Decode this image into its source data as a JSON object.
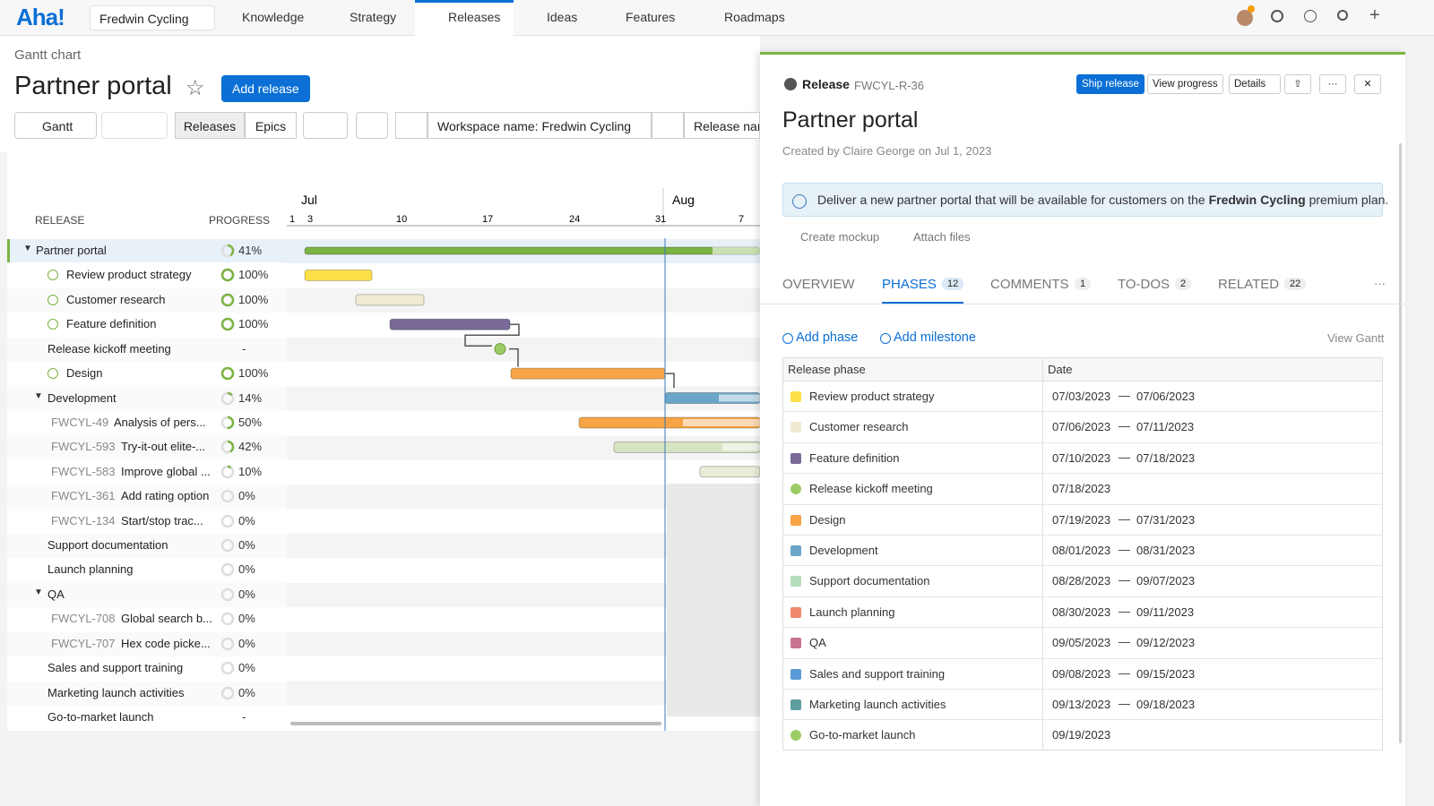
{
  "nav": {
    "logo": "Aha!",
    "workspace": "Fredwin Cycling",
    "items": [
      "Knowledge",
      "Strategy",
      "Releases",
      "Ideas",
      "Features",
      "Roadmaps"
    ],
    "active": 2
  },
  "page": {
    "breadcrumb": "Gantt chart",
    "title": "Partner portal",
    "add_button": "Add release"
  },
  "toolbar": {
    "view": "Gantt",
    "tabs": [
      "Releases",
      "Epics"
    ],
    "filter": "Workspace name: Fredwin Cycling",
    "filter2": "Release nam"
  },
  "gantt": {
    "release_header": "RELEASE",
    "progress_header": "PROGRESS",
    "months": [
      "Jul",
      "Aug"
    ],
    "days": [
      "1",
      "3",
      "10",
      "17",
      "24",
      "31",
      "7"
    ],
    "rows": [
      {
        "name": "Partner portal",
        "progress": 41,
        "progress_label": "41%"
      },
      {
        "name": "Review product strategy",
        "progress": 100,
        "progress_label": "100%"
      },
      {
        "name": "Customer research",
        "progress": 100,
        "progress_label": "100%"
      },
      {
        "name": "Feature definition",
        "progress": 100,
        "progress_label": "100%"
      },
      {
        "name": "Release kickoff meeting",
        "progress": null,
        "progress_label": "-"
      },
      {
        "name": "Design",
        "progress": 100,
        "progress_label": "100%"
      },
      {
        "name": "Development",
        "progress": 14,
        "progress_label": "14%"
      },
      {
        "id": "FWCYL-49",
        "name": "Analysis of pers...",
        "progress": 50,
        "progress_label": "50%"
      },
      {
        "id": "FWCYL-593",
        "name": "Try-it-out elite-...",
        "progress": 42,
        "progress_label": "42%"
      },
      {
        "id": "FWCYL-583",
        "name": "Improve global ...",
        "progress": 10,
        "progress_label": "10%"
      },
      {
        "id": "FWCYL-361",
        "name": "Add rating option",
        "progress": 0,
        "progress_label": "0%"
      },
      {
        "id": "FWCYL-134",
        "name": "Start/stop trac...",
        "progress": 0,
        "progress_label": "0%"
      },
      {
        "name": "Support documentation",
        "progress": 0,
        "progress_label": "0%"
      },
      {
        "name": "Launch planning",
        "progress": 0,
        "progress_label": "0%"
      },
      {
        "name": "QA",
        "progress": 0,
        "progress_label": "0%"
      },
      {
        "id": "FWCYL-708",
        "name": "Global search b...",
        "progress": 0,
        "progress_label": "0%"
      },
      {
        "id": "FWCYL-707",
        "name": "Hex code picke...",
        "progress": 0,
        "progress_label": "0%"
      },
      {
        "name": "Sales and support training",
        "progress": 0,
        "progress_label": "0%"
      },
      {
        "name": "Marketing launch activities",
        "progress": 0,
        "progress_label": "0%"
      },
      {
        "name": "Go-to-market launch",
        "progress": null,
        "progress_label": "-"
      }
    ]
  },
  "panel": {
    "label": "Release",
    "id": "FWCYL-R-36",
    "buttons": [
      "Ship release",
      "View progress",
      "Details"
    ],
    "title": "Partner portal",
    "created": "Created by Claire George on Jul 1, 2023",
    "info_before": "Deliver a new partner portal that will be available for customers on the ",
    "info_bold": "Fredwin Cycling",
    "info_after": " premium plan.",
    "actions": [
      "Create mockup",
      "Attach files"
    ],
    "tabs": [
      {
        "label": "OVERVIEW"
      },
      {
        "label": "PHASES",
        "count": 12
      },
      {
        "label": "COMMENTS",
        "count": 1
      },
      {
        "label": "TO-DOS",
        "count": 2
      },
      {
        "label": "RELATED",
        "count": 22
      }
    ],
    "active_tab": 1,
    "add_phase": "Add phase",
    "add_milestone": "Add milestone",
    "view_gantt": "View Gantt",
    "table_headers": [
      "Release phase",
      "Date"
    ],
    "phases": [
      {
        "name": "Review product strategy",
        "color": "#fde047",
        "start": "07/03/2023",
        "end": "07/06/2023"
      },
      {
        "name": "Customer research",
        "color": "#f1ead3",
        "start": "07/06/2023",
        "end": "07/11/2023"
      },
      {
        "name": "Feature definition",
        "color": "#7a6a9a",
        "start": "07/10/2023",
        "end": "07/18/2023"
      },
      {
        "name": "Release kickoff meeting",
        "color": "#9ccc65",
        "start": "07/18/2023",
        "milestone": true
      },
      {
        "name": "Design",
        "color": "#f6a445",
        "start": "07/19/2023",
        "end": "07/31/2023"
      },
      {
        "name": "Development",
        "color": "#6aa6c8",
        "start": "08/01/2023",
        "end": "08/31/2023"
      },
      {
        "name": "Support documentation",
        "color": "#b5dcbc",
        "start": "08/28/2023",
        "end": "09/07/2023"
      },
      {
        "name": "Launch planning",
        "color": "#f08a6c",
        "start": "08/30/2023",
        "end": "09/11/2023"
      },
      {
        "name": "QA",
        "color": "#c9738f",
        "start": "09/05/2023",
        "end": "09/12/2023"
      },
      {
        "name": "Sales and support training",
        "color": "#5b9ad8",
        "start": "09/08/2023",
        "end": "09/15/2023"
      },
      {
        "name": "Marketing launch activities",
        "color": "#5e9ea0",
        "start": "09/13/2023",
        "end": "09/18/2023"
      },
      {
        "name": "Go-to-market launch",
        "color": "#9ccc65",
        "start": "09/19/2023",
        "milestone": true
      }
    ]
  }
}
